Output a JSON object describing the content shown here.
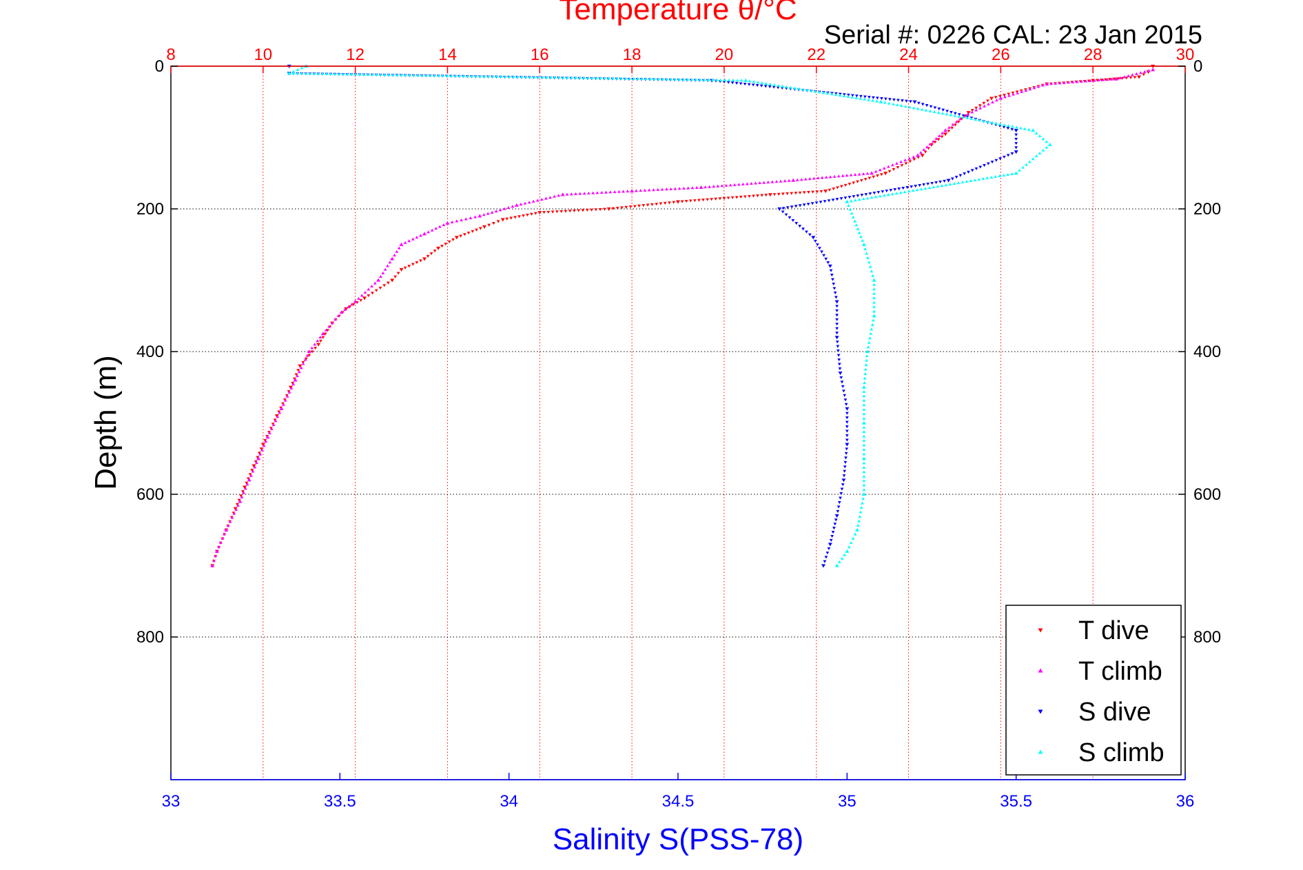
{
  "chart_data": {
    "type": "scatter",
    "header": "Serial #: 0226  CAL: 23 Jan 2015",
    "top_axis": {
      "label": "Temperature θ/°C",
      "range": [
        8,
        30
      ],
      "ticks": [
        "8",
        "10",
        "12",
        "14",
        "16",
        "18",
        "20",
        "22",
        "24",
        "26",
        "28",
        "30"
      ],
      "color": "#ff0000"
    },
    "bottom_axis": {
      "label": "Salinity S(PSS-78)",
      "range": [
        33,
        36
      ],
      "ticks": [
        "33",
        "33.5",
        "34",
        "34.5",
        "35",
        "35.5",
        "36"
      ],
      "color": "#0000ff"
    },
    "y_axis": {
      "label": "Depth (m)",
      "range": [
        0,
        1000
      ],
      "inverted": true,
      "ticks": [
        "0",
        "200",
        "400",
        "600",
        "800"
      ]
    },
    "grid": true,
    "legend": {
      "placement": "bottom-right"
    },
    "series": [
      {
        "name": "T dive",
        "variable": "temperature",
        "marker": "triangle-down",
        "color": "#ff0000",
        "points": [
          [
            29.3,
            0
          ],
          [
            29.2,
            8
          ],
          [
            29.0,
            15
          ],
          [
            28.0,
            20
          ],
          [
            27.0,
            25
          ],
          [
            25.8,
            45
          ],
          [
            25.3,
            65
          ],
          [
            24.8,
            95
          ],
          [
            24.5,
            110
          ],
          [
            24.3,
            125
          ],
          [
            23.5,
            150
          ],
          [
            22.2,
            175
          ],
          [
            21.0,
            180
          ],
          [
            19.0,
            190
          ],
          [
            17.5,
            200
          ],
          [
            16.0,
            205
          ],
          [
            15.2,
            215
          ],
          [
            14.8,
            225
          ],
          [
            14.2,
            240
          ],
          [
            13.8,
            255
          ],
          [
            13.5,
            270
          ],
          [
            13.0,
            285
          ],
          [
            12.8,
            300
          ],
          [
            12.2,
            325
          ],
          [
            11.8,
            340
          ],
          [
            11.5,
            360
          ],
          [
            11.2,
            390
          ],
          [
            10.8,
            420
          ],
          [
            10.6,
            450
          ],
          [
            10.3,
            490
          ],
          [
            10.0,
            530
          ],
          [
            9.8,
            560
          ],
          [
            9.6,
            590
          ],
          [
            9.4,
            620
          ],
          [
            9.2,
            650
          ],
          [
            9.0,
            680
          ],
          [
            8.9,
            700
          ]
        ]
      },
      {
        "name": "T climb",
        "variable": "temperature",
        "marker": "triangle-up",
        "color": "#ff00ff",
        "points": [
          [
            29.3,
            5
          ],
          [
            28.5,
            18
          ],
          [
            27.0,
            25
          ],
          [
            26.0,
            45
          ],
          [
            25.2,
            70
          ],
          [
            24.8,
            90
          ],
          [
            24.2,
            125
          ],
          [
            23.2,
            150
          ],
          [
            21.5,
            160
          ],
          [
            19.5,
            170
          ],
          [
            18.0,
            175
          ],
          [
            16.5,
            180
          ],
          [
            15.5,
            195
          ],
          [
            14.7,
            210
          ],
          [
            14.0,
            220
          ],
          [
            13.5,
            235
          ],
          [
            13.0,
            250
          ],
          [
            12.8,
            270
          ],
          [
            12.5,
            300
          ],
          [
            12.0,
            330
          ],
          [
            11.7,
            345
          ],
          [
            11.3,
            375
          ],
          [
            11.0,
            400
          ],
          [
            10.7,
            440
          ],
          [
            10.4,
            480
          ],
          [
            10.1,
            520
          ],
          [
            9.9,
            550
          ],
          [
            9.7,
            580
          ],
          [
            9.5,
            610
          ],
          [
            9.2,
            650
          ],
          [
            9.0,
            680
          ],
          [
            8.9,
            700
          ]
        ]
      },
      {
        "name": "S dive",
        "variable": "salinity",
        "marker": "triangle-down",
        "color": "#0000ff",
        "points": [
          [
            33.35,
            0
          ],
          [
            33.35,
            10
          ],
          [
            34.6,
            20
          ],
          [
            35.2,
            50
          ],
          [
            35.5,
            90
          ],
          [
            35.5,
            120
          ],
          [
            35.3,
            160
          ],
          [
            34.8,
            200
          ],
          [
            34.9,
            240
          ],
          [
            34.95,
            280
          ],
          [
            34.97,
            330
          ],
          [
            34.97,
            380
          ],
          [
            34.98,
            430
          ],
          [
            35.0,
            480
          ],
          [
            35.0,
            530
          ],
          [
            34.99,
            580
          ],
          [
            34.97,
            630
          ],
          [
            34.95,
            670
          ],
          [
            34.93,
            700
          ]
        ]
      },
      {
        "name": "S climb",
        "variable": "salinity",
        "marker": "triangle-up",
        "color": "#00ffff",
        "points": [
          [
            33.4,
            0
          ],
          [
            33.35,
            10
          ],
          [
            34.7,
            20
          ],
          [
            35.1,
            50
          ],
          [
            35.55,
            90
          ],
          [
            35.6,
            110
          ],
          [
            35.5,
            150
          ],
          [
            35.0,
            190
          ],
          [
            35.05,
            250
          ],
          [
            35.08,
            300
          ],
          [
            35.08,
            350
          ],
          [
            35.06,
            400
          ],
          [
            35.05,
            450
          ],
          [
            35.05,
            500
          ],
          [
            35.05,
            550
          ],
          [
            35.05,
            600
          ],
          [
            35.03,
            650
          ],
          [
            35.0,
            680
          ],
          [
            34.97,
            700
          ]
        ]
      }
    ]
  }
}
